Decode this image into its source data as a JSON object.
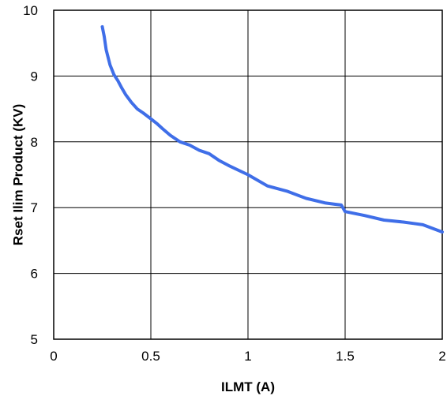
{
  "chart_data": {
    "type": "line",
    "title": "",
    "xlabel": "ILMT (A)",
    "ylabel": "Rset Ilim Product (KV)",
    "xlim": [
      0,
      2
    ],
    "ylim": [
      5,
      10
    ],
    "x_ticks": [
      0,
      0.5,
      1,
      1.5,
      2
    ],
    "x_tick_labels": [
      "0",
      "0.5",
      "1",
      "1.5",
      "2"
    ],
    "y_ticks": [
      5,
      6,
      7,
      8,
      9,
      10
    ],
    "y_tick_labels": [
      "5",
      "6",
      "7",
      "8",
      "9",
      "10"
    ],
    "grid": true,
    "series": [
      {
        "color": "#3f6ee8",
        "x": [
          0.25,
          0.26,
          0.27,
          0.29,
          0.31,
          0.33,
          0.35,
          0.37,
          0.4,
          0.43,
          0.46,
          0.5,
          0.53,
          0.56,
          0.6,
          0.65,
          0.7,
          0.75,
          0.8,
          0.85,
          0.9,
          1.0,
          1.1,
          1.2,
          1.3,
          1.4,
          1.45,
          1.48,
          1.5,
          1.55,
          1.6,
          1.7,
          1.8,
          1.85,
          1.9,
          2.0
        ],
        "y": [
          9.75,
          9.6,
          9.4,
          9.17,
          9.02,
          8.93,
          8.82,
          8.72,
          8.6,
          8.5,
          8.44,
          8.35,
          8.28,
          8.2,
          8.1,
          8.0,
          7.95,
          7.87,
          7.82,
          7.72,
          7.64,
          7.5,
          7.33,
          7.25,
          7.14,
          7.07,
          7.05,
          7.04,
          6.94,
          6.91,
          6.88,
          6.81,
          6.78,
          6.76,
          6.74,
          6.63
        ]
      }
    ]
  }
}
